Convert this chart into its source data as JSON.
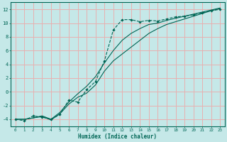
{
  "xlabel": "Humidex (Indice chaleur)",
  "background_color": "#c5e8e8",
  "grid_color": "#e8b0b0",
  "line_color": "#006655",
  "xlim": [
    -0.5,
    23.5
  ],
  "ylim": [
    -5,
    13
  ],
  "xticks": [
    0,
    1,
    2,
    3,
    4,
    5,
    6,
    7,
    8,
    9,
    10,
    11,
    12,
    13,
    14,
    15,
    16,
    17,
    18,
    19,
    20,
    21,
    22,
    23
  ],
  "yticks": [
    -4,
    -2,
    0,
    2,
    4,
    6,
    8,
    10,
    12
  ],
  "series1_x": [
    0,
    1,
    2,
    3,
    4,
    5,
    6,
    7,
    8,
    9,
    10,
    11,
    12,
    13,
    14,
    15,
    16,
    17,
    18,
    19,
    20,
    21,
    22,
    23
  ],
  "series1_y": [
    -4,
    -4.2,
    -3.5,
    -3.7,
    -4,
    -3.3,
    -1.2,
    -1.5,
    0.3,
    1.5,
    4.5,
    9,
    10.5,
    10.5,
    10.2,
    10.4,
    10.3,
    10.6,
    10.9,
    11.0,
    11.2,
    11.5,
    11.8,
    12
  ],
  "series2_x": [
    0,
    1,
    2,
    3,
    4,
    5,
    6,
    7,
    8,
    9,
    10,
    11,
    12,
    13,
    14,
    15,
    16,
    17,
    18,
    19,
    20,
    21,
    22,
    23
  ],
  "series2_y": [
    -4,
    -4,
    -3.8,
    -3.6,
    -4.1,
    -3.2,
    -1.8,
    -0.8,
    -0.2,
    1.0,
    3.0,
    4.5,
    5.5,
    6.5,
    7.5,
    8.5,
    9.2,
    9.8,
    10.2,
    10.6,
    11.0,
    11.4,
    11.8,
    12.1
  ],
  "series3_x": [
    0,
    1,
    2,
    3,
    4,
    5,
    6,
    7,
    8,
    9,
    10,
    11,
    12,
    13,
    14,
    15,
    16,
    17,
    18,
    19,
    20,
    21,
    22,
    23
  ],
  "series3_y": [
    -4,
    -4,
    -3.8,
    -3.5,
    -4,
    -3.0,
    -1.5,
    -0.3,
    0.8,
    2.2,
    4.2,
    6.0,
    7.5,
    8.5,
    9.2,
    9.8,
    10.0,
    10.4,
    10.7,
    11.0,
    11.3,
    11.6,
    11.9,
    12.2
  ]
}
